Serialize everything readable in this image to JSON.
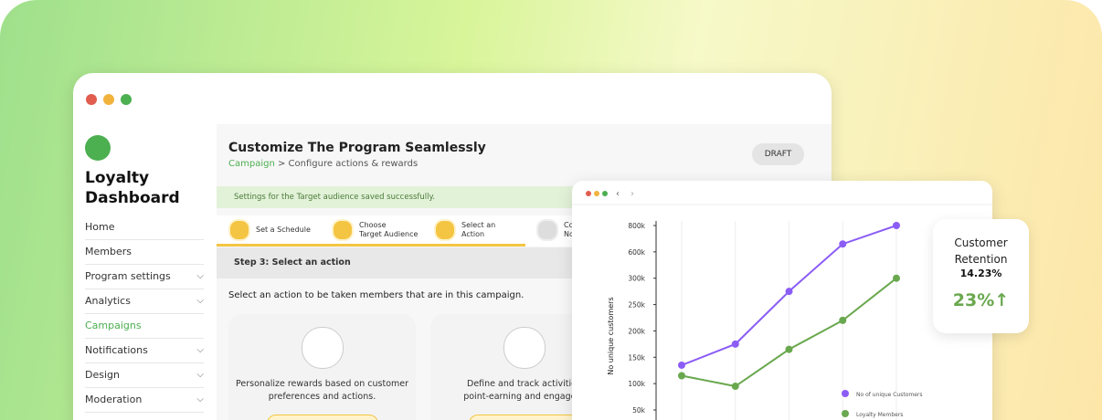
{
  "sidebar": {
    "title": "Loyalty Dashboard",
    "nav": [
      "Home",
      "Members",
      "Program settings",
      "Analytics",
      "Campaigns",
      "Notifications",
      "Design",
      "Moderation"
    ]
  },
  "header": {
    "title": "Customize The Program Seamlessly",
    "breadcrumb_link": "Campaign",
    "breadcrumb_rest": "> Configure actions & rewards",
    "button": "DRAFT"
  },
  "banner": "Settings for the Target audience saved successfully.",
  "steps": [
    [
      "Set a Schedule"
    ],
    [
      "Choose",
      "Target Audience"
    ],
    [
      "Select an",
      "Action"
    ],
    [
      "Co",
      "No"
    ]
  ],
  "section": "Step 3: Select an action",
  "instruction": "Select an action to be taken members that are in this campaign.",
  "cards": [
    [
      "Personalize rewards based on customer",
      "preferences and actions."
    ],
    [
      "Define and track activities",
      "point-earning and engagem"
    ]
  ],
  "retention": {
    "title": [
      "Customer",
      "Retention"
    ],
    "value": "14.23%",
    "change": "23%↑"
  },
  "chart_data": {
    "type": "line",
    "y_label": "No unique customers",
    "categories": [
      null,
      null,
      null,
      null,
      null
    ],
    "series": [
      {
        "name": "No of unique Customers",
        "color": "#8b5cf6",
        "values": [
          135000,
          175000,
          275000,
          660000,
          800000
        ]
      },
      {
        "name": "Loyalty Members",
        "color": "#6aa84f",
        "values": [
          115000,
          95000,
          165000,
          220000,
          300000
        ]
      }
    ],
    "ylim": [
      50000,
      800000
    ],
    "yticks": [
      {
        "value": 50000,
        "label": "50k"
      },
      {
        "value": 100000,
        "label": "100k"
      },
      {
        "value": 150000,
        "label": "150k"
      },
      {
        "value": 200000,
        "label": "200k"
      },
      {
        "value": 250000,
        "label": "250k"
      },
      {
        "value": 300000,
        "label": "300k"
      },
      {
        "value": 600000,
        "label": "600k"
      },
      {
        "value": 800000,
        "label": "800k"
      }
    ],
    "grid": true
  }
}
